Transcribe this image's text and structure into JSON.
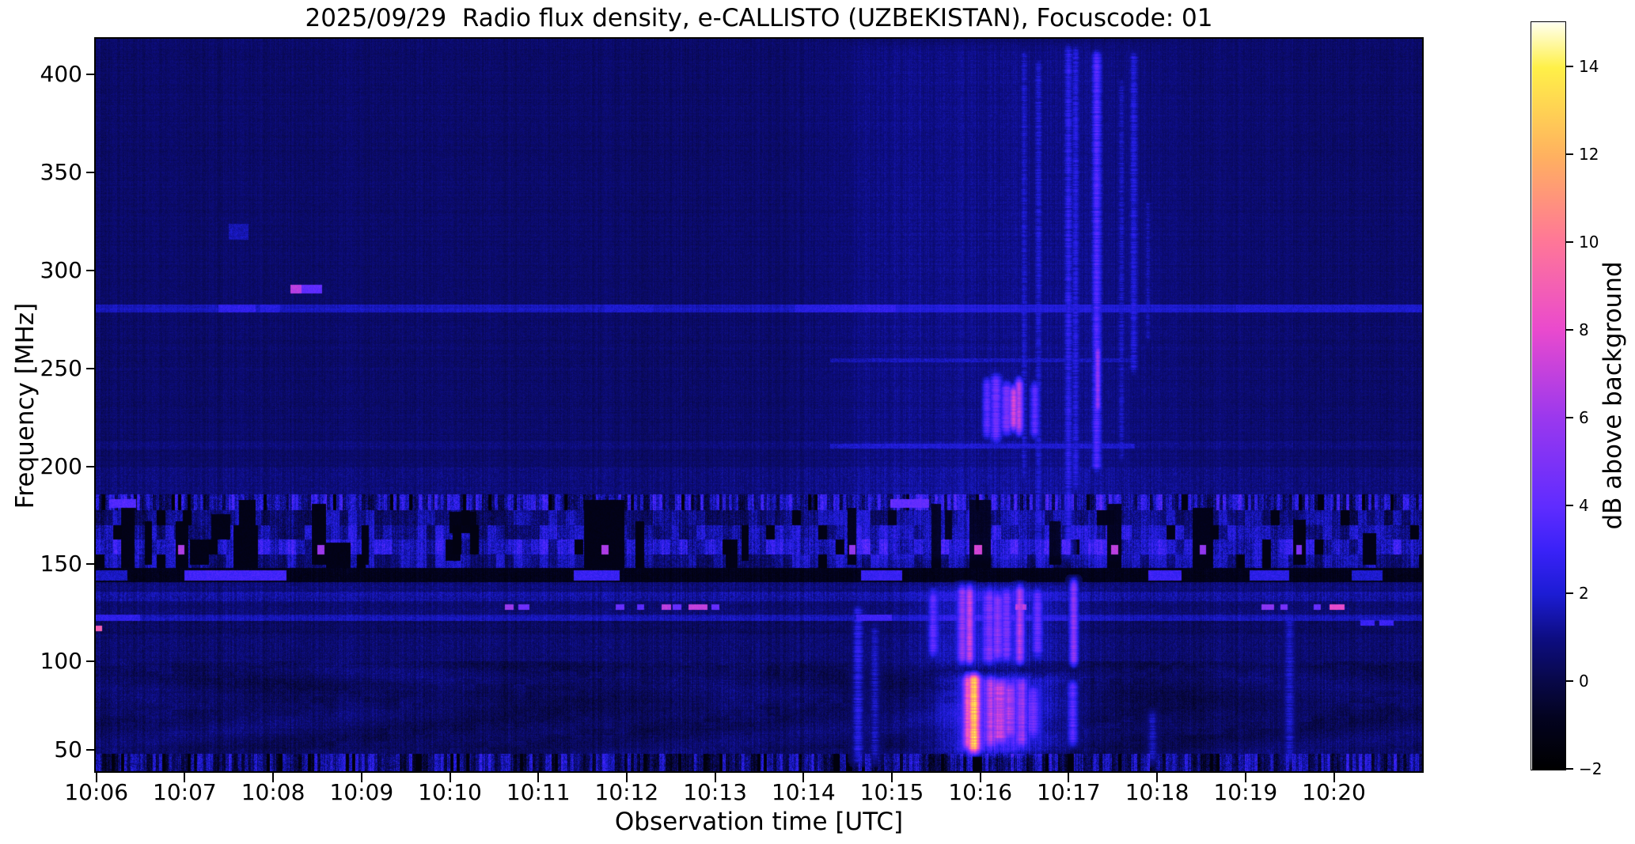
{
  "chart_data": {
    "type": "heatmap",
    "subtype": "radio-spectrogram",
    "title": "2025/09/29  Radio flux density, e-CALLISTO (UZBEKISTAN), Focuscode: 01",
    "xlabel": "Observation time [UTC]",
    "ylabel": "Frequency [MHz]",
    "x_ticks": [
      "10:06",
      "10:07",
      "10:08",
      "10:09",
      "10:10",
      "10:11",
      "10:12",
      "10:13",
      "10:14",
      "10:15",
      "10:16",
      "10:17",
      "10:18",
      "10:19",
      "10:20"
    ],
    "y_ticks": [
      "400",
      "350",
      "300",
      "250",
      "200",
      "150",
      "100",
      "50"
    ],
    "y_tick_values": [
      400,
      350,
      300,
      250,
      200,
      150,
      100,
      50
    ],
    "x_range_utc": [
      "10:06",
      "10:21"
    ],
    "y_range_mhz": [
      38,
      418
    ],
    "value_range_db": [
      -2,
      15
    ],
    "grid": false,
    "colorbar": {
      "label": "dB above background",
      "ticks": [
        "14",
        "12",
        "10",
        "8",
        "6",
        "4",
        "2",
        "0",
        "−2"
      ],
      "tick_values": [
        14,
        12,
        10,
        8,
        6,
        4,
        2,
        0,
        -2
      ]
    },
    "colormap_stops": [
      [
        0,
        0,
        0,
        0
      ],
      [
        0.07,
        3,
        3,
        32
      ],
      [
        0.118,
        8,
        8,
        72
      ],
      [
        0.176,
        13,
        13,
        130
      ],
      [
        0.235,
        28,
        28,
        212
      ],
      [
        0.294,
        58,
        34,
        248
      ],
      [
        0.353,
        96,
        44,
        255
      ],
      [
        0.47,
        154,
        56,
        238
      ],
      [
        0.59,
        234,
        74,
        205
      ],
      [
        0.71,
        255,
        120,
        150
      ],
      [
        0.82,
        255,
        176,
        96
      ],
      [
        0.94,
        255,
        240,
        72
      ],
      [
        1,
        255,
        255,
        236
      ]
    ],
    "background_db": 0.55,
    "background_noise_db": 0.55,
    "bands": [
      {
        "f1": 418,
        "f2": 293,
        "v": 0.55,
        "n": 0.5
      },
      {
        "f1": 293,
        "f2": 283,
        "v": 0.55,
        "n": 0.5
      },
      {
        "f1": 283,
        "f2": 279,
        "v": 1.7,
        "n": 0.5
      },
      {
        "f1": 279,
        "f2": 213,
        "v": 0.55,
        "n": 0.55
      },
      {
        "f1": 213,
        "f2": 209,
        "v": 0.8,
        "n": 0.6
      },
      {
        "f1": 209,
        "f2": 200,
        "v": 0.55,
        "n": 0.55
      },
      {
        "f1": 200,
        "f2": 186,
        "v": 0.8,
        "n": 0.7
      },
      {
        "f1": 186,
        "f2": 178,
        "v": 1.0,
        "n": 1.6,
        "s": "ticks"
      },
      {
        "f1": 178,
        "f2": 170,
        "v": 0.9,
        "n": 1.2,
        "s": "cells"
      },
      {
        "f1": 170,
        "f2": 163,
        "v": 1.3,
        "n": 1.3,
        "s": "cells"
      },
      {
        "f1": 163,
        "f2": 155,
        "v": 1.9,
        "n": 1.4,
        "s": "cells"
      },
      {
        "f1": 155,
        "f2": 148,
        "v": 1.2,
        "n": 1.2,
        "s": "cells"
      },
      {
        "f1": 148,
        "f2": 141,
        "v": -1.0,
        "n": 0.6
      },
      {
        "f1": 141,
        "f2": 136,
        "v": 0.8,
        "n": 0.8
      },
      {
        "f1": 136,
        "f2": 131,
        "v": 1.3,
        "n": 0.9
      },
      {
        "f1": 131,
        "f2": 124,
        "v": 0.7,
        "n": 0.8
      },
      {
        "f1": 124,
        "f2": 121,
        "v": 1.6,
        "n": 0.7
      },
      {
        "f1": 121,
        "f2": 114,
        "v": 0.4,
        "n": 0.8
      },
      {
        "f1": 114,
        "f2": 100,
        "v": 0.65,
        "n": 0.8
      },
      {
        "f1": 100,
        "f2": 48,
        "v": 0.5,
        "n": 0.85,
        "s": "wavy"
      },
      {
        "f1": 48,
        "f2": 38,
        "v": 0.55,
        "n": 1.5,
        "s": "ticks"
      }
    ],
    "segments": [
      [
        1.0,
        2.15,
        141.5,
        147,
        3.2
      ],
      [
        5.4,
        5.92,
        141.5,
        147,
        2.9
      ],
      [
        8.65,
        9.12,
        141.5,
        147,
        2.9
      ],
      [
        11.9,
        12.28,
        141.5,
        147,
        3.0
      ],
      [
        13.05,
        13.5,
        141.5,
        147,
        2.5
      ],
      [
        14.2,
        14.55,
        141.5,
        147,
        2.0
      ],
      [
        0.0,
        0.35,
        141.5,
        147,
        1.8
      ],
      [
        0.15,
        0.45,
        179,
        183.5,
        3.6
      ],
      [
        8.98,
        9.42,
        179,
        183.5,
        3.6
      ],
      [
        2.2,
        2.32,
        288.5,
        293,
        6.8
      ],
      [
        2.32,
        2.56,
        288.5,
        293,
        4.0
      ],
      [
        1.38,
        1.8,
        279,
        283,
        2.6
      ],
      [
        1.86,
        2.08,
        279,
        283,
        2.3
      ],
      [
        7.9,
        9.05,
        279,
        283,
        2.2
      ],
      [
        5.75,
        6.3,
        279,
        283,
        1.9
      ],
      [
        12.9,
        15.05,
        279,
        283,
        1.9
      ],
      [
        8.3,
        11.75,
        209.5,
        212,
        1.6
      ],
      [
        8.3,
        11.75,
        253.5,
        255.5,
        1.2
      ],
      [
        0.0,
        0.5,
        121,
        124,
        2.6
      ],
      [
        8.6,
        9.0,
        121,
        124,
        3.0
      ],
      [
        4.62,
        4.72,
        126.5,
        129.5,
        6.0
      ],
      [
        4.78,
        4.9,
        126.5,
        129.5,
        4.5
      ],
      [
        5.88,
        5.98,
        126.5,
        129.5,
        4.2
      ],
      [
        6.12,
        6.2,
        126.5,
        129.5,
        3.8
      ],
      [
        6.4,
        6.5,
        126.5,
        129.5,
        6.8
      ],
      [
        6.52,
        6.62,
        126.5,
        129.5,
        4.2
      ],
      [
        6.7,
        6.92,
        126.5,
        129.5,
        7.0
      ],
      [
        6.96,
        7.05,
        126.5,
        129.5,
        4.2
      ],
      [
        10.4,
        10.52,
        126.5,
        129.5,
        5.5
      ],
      [
        13.18,
        13.33,
        126.5,
        129.5,
        5.5
      ],
      [
        13.4,
        13.48,
        126.5,
        129.5,
        4.8
      ],
      [
        13.77,
        13.85,
        126.5,
        129.5,
        4.2
      ],
      [
        13.95,
        14.12,
        126.5,
        129.5,
        8.0
      ],
      [
        14.3,
        14.46,
        118.5,
        121.5,
        3.0
      ],
      [
        14.52,
        14.68,
        118.5,
        121.5,
        3.0
      ],
      [
        0.0,
        0.07,
        115.5,
        118.5,
        9.0
      ],
      [
        0.93,
        1.0,
        155,
        160,
        6.5
      ],
      [
        2.5,
        2.58,
        155,
        160,
        6.0
      ],
      [
        5.72,
        5.8,
        155,
        160,
        6.5
      ],
      [
        8.52,
        8.59,
        155,
        160,
        5.5
      ],
      [
        9.93,
        10.02,
        155,
        160,
        7.0
      ],
      [
        11.48,
        11.56,
        155,
        160,
        6.5
      ],
      [
        12.48,
        12.56,
        155,
        160,
        5.5
      ],
      [
        13.58,
        13.64,
        155,
        160,
        5.0
      ],
      [
        1.5,
        1.72,
        316,
        324,
        1.6
      ]
    ],
    "dropouts": [
      [
        0.28,
        0.43,
        148,
        180
      ],
      [
        0.55,
        0.63,
        150,
        172
      ],
      [
        0.9,
        1.04,
        148,
        172
      ],
      [
        1.06,
        1.28,
        150,
        163
      ],
      [
        1.3,
        1.52,
        163,
        176
      ],
      [
        1.55,
        1.83,
        148,
        170
      ],
      [
        1.62,
        1.8,
        170,
        183
      ],
      [
        2.44,
        2.6,
        150,
        181
      ],
      [
        2.6,
        2.88,
        148,
        161
      ],
      [
        3.0,
        3.08,
        150,
        170
      ],
      [
        3.95,
        4.12,
        152,
        163
      ],
      [
        4.0,
        4.3,
        166,
        177
      ],
      [
        5.52,
        5.98,
        148,
        183
      ],
      [
        6.1,
        6.2,
        150,
        172
      ],
      [
        7.12,
        7.26,
        148,
        163
      ],
      [
        7.3,
        7.38,
        152,
        170
      ],
      [
        8.5,
        8.6,
        150,
        179
      ],
      [
        9.45,
        9.56,
        148,
        181
      ],
      [
        9.6,
        9.68,
        163,
        178
      ],
      [
        9.88,
        10.12,
        148,
        183
      ],
      [
        10.78,
        10.92,
        150,
        172
      ],
      [
        11.44,
        11.6,
        148,
        181
      ],
      [
        12.4,
        12.64,
        148,
        179
      ],
      [
        13.54,
        13.68,
        150,
        173
      ],
      [
        14.33,
        14.48,
        150,
        166
      ]
    ],
    "bursts": [
      {
        "t": 8.62,
        "w": 0.045,
        "f1": 40,
        "f2": 132,
        "v": 3.0,
        "p": 0.5
      },
      {
        "t": 8.81,
        "w": 0.04,
        "f1": 40,
        "f2": 122,
        "v": 2.2,
        "p": 0.5
      },
      {
        "t": 9.47,
        "w": 0.04,
        "f1": 100,
        "f2": 140,
        "v": 4.0,
        "p": 0.35
      },
      {
        "t": 9.8,
        "w": 0.04,
        "f1": 96,
        "f2": 142,
        "v": 5.0,
        "p": 0.3
      },
      {
        "t": 9.88,
        "w": 0.035,
        "f1": 96,
        "f2": 142,
        "v": 6.5,
        "p": 0.25
      },
      {
        "t": 10.1,
        "w": 0.05,
        "f1": 96,
        "f2": 140,
        "v": 4.0,
        "p": 0.35
      },
      {
        "t": 10.2,
        "w": 0.045,
        "f1": 98,
        "f2": 138,
        "v": 4.5,
        "p": 0.3
      },
      {
        "t": 10.3,
        "w": 0.04,
        "f1": 98,
        "f2": 140,
        "v": 4.0,
        "p": 0.35
      },
      {
        "t": 10.45,
        "w": 0.035,
        "f1": 96,
        "f2": 142,
        "v": 6.0,
        "p": 0.25
      },
      {
        "t": 10.65,
        "w": 0.04,
        "f1": 100,
        "f2": 140,
        "v": 4.0,
        "p": 0.35
      },
      {
        "t": 11.06,
        "w": 0.035,
        "f1": 95,
        "f2": 145,
        "v": 6.0,
        "p": 0.25
      },
      {
        "t": 9.86,
        "w": 0.035,
        "f1": 48,
        "f2": 96,
        "v": 7.5,
        "p": 0.25
      },
      {
        "t": 9.93,
        "w": 0.05,
        "f1": 46,
        "f2": 96,
        "v": 11.5,
        "p": 0.2
      },
      {
        "t": 10.12,
        "w": 0.05,
        "f1": 50,
        "f2": 94,
        "v": 4.5,
        "p": 0.3
      },
      {
        "t": 10.22,
        "w": 0.06,
        "f1": 52,
        "f2": 92,
        "v": 5.5,
        "p": 0.3
      },
      {
        "t": 10.33,
        "w": 0.05,
        "f1": 55,
        "f2": 90,
        "v": 4.5,
        "p": 0.35
      },
      {
        "t": 10.47,
        "w": 0.04,
        "f1": 50,
        "f2": 93,
        "v": 4.5,
        "p": 0.3
      },
      {
        "t": 10.6,
        "w": 0.05,
        "f1": 55,
        "f2": 88,
        "v": 3.5,
        "p": 0.4
      },
      {
        "t": 11.05,
        "w": 0.04,
        "f1": 50,
        "f2": 92,
        "v": 4.0,
        "p": 0.35
      },
      {
        "t": 11.95,
        "w": 0.04,
        "f1": 40,
        "f2": 75,
        "v": 2.2,
        "p": 0.5
      },
      {
        "t": 13.5,
        "w": 0.045,
        "f1": 40,
        "f2": 128,
        "v": 2.4,
        "p": 0.5
      },
      {
        "t": 10.08,
        "w": 0.04,
        "f1": 212,
        "f2": 248,
        "v": 4.0,
        "p": 0.3
      },
      {
        "t": 10.18,
        "w": 0.05,
        "f1": 210,
        "f2": 250,
        "v": 4.5,
        "p": 0.3
      },
      {
        "t": 10.3,
        "w": 0.05,
        "f1": 214,
        "f2": 246,
        "v": 5.0,
        "p": 0.25
      },
      {
        "t": 10.38,
        "w": 0.04,
        "f1": 216,
        "f2": 244,
        "v": 7.5,
        "p": 0.2
      },
      {
        "t": 10.44,
        "w": 0.035,
        "f1": 214,
        "f2": 248,
        "v": 7.0,
        "p": 0.2
      },
      {
        "t": 10.62,
        "w": 0.04,
        "f1": 212,
        "f2": 246,
        "v": 4.0,
        "p": 0.3
      },
      {
        "t": 10.5,
        "w": 0.03,
        "f1": 190,
        "f2": 415,
        "v": 1.8,
        "p": 0.55
      },
      {
        "t": 10.66,
        "w": 0.03,
        "f1": 150,
        "f2": 410,
        "v": 2.0,
        "p": 0.55
      },
      {
        "t": 11.0,
        "w": 0.035,
        "f1": 150,
        "f2": 418,
        "v": 2.6,
        "p": 0.5
      },
      {
        "t": 11.08,
        "w": 0.03,
        "f1": 185,
        "f2": 418,
        "v": 2.4,
        "p": 0.5
      },
      {
        "t": 11.32,
        "w": 0.04,
        "f1": 195,
        "f2": 415,
        "v": 3.8,
        "p": 0.4
      },
      {
        "t": 11.33,
        "w": 0.025,
        "f1": 225,
        "f2": 265,
        "v": 6.0,
        "p": 0.25
      },
      {
        "t": 11.6,
        "w": 0.03,
        "f1": 200,
        "f2": 400,
        "v": 1.8,
        "p": 0.55
      },
      {
        "t": 11.74,
        "w": 0.035,
        "f1": 245,
        "f2": 415,
        "v": 2.4,
        "p": 0.5
      },
      {
        "t": 11.9,
        "w": 0.025,
        "f1": 260,
        "f2": 340,
        "v": 1.6,
        "p": 0.5
      },
      {
        "t": 10.2,
        "w": 0.45,
        "f1": 45,
        "f2": 95,
        "v": 2.8,
        "p": 0.15,
        "haze": true
      },
      {
        "t": 10.15,
        "w": 0.55,
        "f1": 95,
        "f2": 142,
        "v": 1.6,
        "p": 0.2,
        "haze": true
      },
      {
        "t": 10.6,
        "w": 1.3,
        "f1": 150,
        "f2": 418,
        "v": 0.55,
        "p": 0.3,
        "haze": true
      },
      {
        "t": 9.0,
        "w": 0.5,
        "f1": 150,
        "f2": 418,
        "v": 0.3,
        "p": 0.3,
        "haze": true
      }
    ]
  }
}
